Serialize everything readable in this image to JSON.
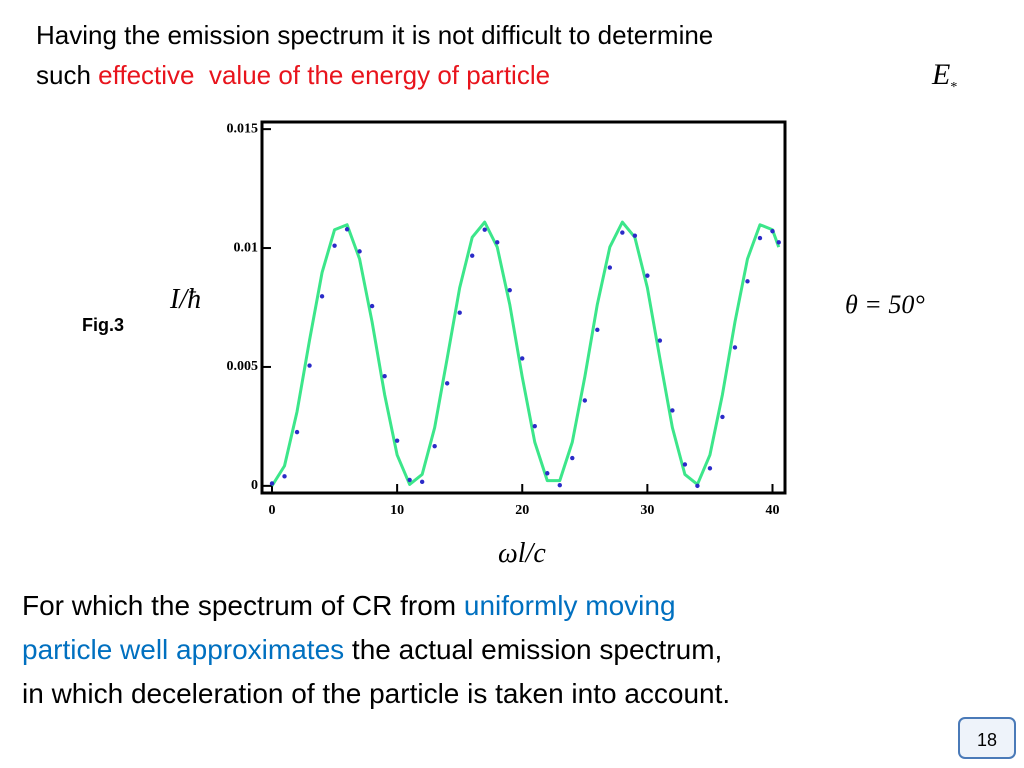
{
  "header": {
    "line1": "Having the emission spectrum it is not difficult to determine",
    "line2_prefix": "such",
    "line2_highlight": "effective  value of the energy of particle",
    "symbol": "E",
    "symbol_subscript": "*"
  },
  "figure_label": "Fig.3",
  "chart_data": {
    "type": "line",
    "ylabel": "I/ħ",
    "xlabel": "ωl/c",
    "annotation": "θ = 50°",
    "xlim": [
      -0.8,
      41
    ],
    "ylim": [
      -0.0003,
      0.0153
    ],
    "xticks": [
      0,
      10,
      20,
      30,
      40
    ],
    "yticks": [
      0,
      0.005,
      0.01,
      0.015
    ],
    "series": [
      {
        "color": "#3ce68a",
        "style": "line",
        "x": [
          0,
          1,
          2,
          3,
          4,
          5,
          6,
          7,
          8,
          9,
          10,
          11,
          12,
          13,
          14,
          15,
          16,
          17,
          18,
          19,
          20,
          21,
          22,
          23,
          24,
          25,
          26,
          27,
          28,
          29,
          30,
          31,
          32,
          33,
          34,
          35,
          36,
          37,
          38,
          39,
          40,
          40.5
        ],
        "values": [
          0,
          0.00084,
          0.00312,
          0.00613,
          0.00897,
          0.01077,
          0.01098,
          0.00954,
          0.00689,
          0.00384,
          0.0013,
          6e-05,
          0.00048,
          0.00245,
          0.00536,
          0.00833,
          0.01045,
          0.01109,
          0.01004,
          0.00763,
          0.00458,
          0.00184,
          0.00022,
          0.00022,
          0.00184,
          0.00458,
          0.00763,
          0.01004,
          0.01109,
          0.01045,
          0.00833,
          0.00536,
          0.00245,
          0.00048,
          6e-05,
          0.0013,
          0.00384,
          0.00689,
          0.00954,
          0.01098,
          0.01077,
          0.01004
        ]
      },
      {
        "color": "#2b2bc8",
        "style": "markers",
        "x": [
          0,
          1,
          2,
          3,
          4,
          5,
          6,
          7,
          8,
          9,
          10,
          11,
          12,
          13,
          14,
          15,
          16,
          17,
          18,
          19,
          20,
          21,
          22,
          23,
          24,
          25,
          26,
          27,
          28,
          29,
          30,
          31,
          32,
          33,
          34,
          35,
          36,
          37,
          38,
          39,
          40,
          40.5
        ],
        "values": [
          0.0001,
          0.0004,
          0.00226,
          0.00506,
          0.00797,
          0.0101,
          0.01079,
          0.00986,
          0.00756,
          0.00461,
          0.0019,
          0.00025,
          0.00017,
          0.00167,
          0.00431,
          0.00728,
          0.00968,
          0.01077,
          0.01024,
          0.00823,
          0.00536,
          0.00251,
          0.00053,
          3e-05,
          0.00117,
          0.00359,
          0.00656,
          0.00918,
          0.01065,
          0.01052,
          0.00884,
          0.00611,
          0.00317,
          0.0009,
          0,
          0.00074,
          0.0029,
          0.00582,
          0.0086,
          0.01042,
          0.01071,
          0.01024
        ]
      }
    ]
  },
  "footer": {
    "line1_plain": "For which the spectrum of CR from",
    "line1_highlight": "uniformly moving",
    "line2_highlight": "particle well approximates",
    "line2_plain": "the actual emission spectrum,",
    "line3": "in which deceleration of the particle is taken into account."
  },
  "page_number": "18"
}
